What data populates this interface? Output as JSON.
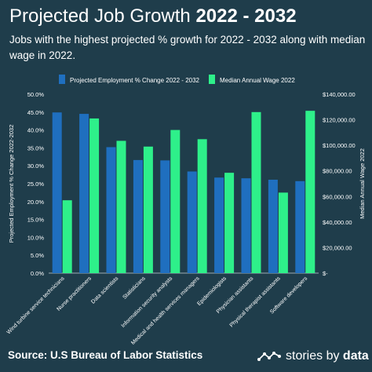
{
  "header": {
    "title_regular": "Projected Job Growth ",
    "title_bold": "2022 - 2032",
    "subtitle": "Jobs with the highest projected % growth for 2022 - 2032 along with median wage in 2022."
  },
  "footer": {
    "source": "Source:  U.S Bureau of Labor Statistics",
    "brand_regular": "stories by ",
    "brand_bold": "data"
  },
  "colors": {
    "background": "#1f3d4b",
    "employment": "#1f6fbf",
    "wage": "#2ef08a",
    "text": "#ffffff",
    "grid": "#3e5c69"
  },
  "chart_data": {
    "type": "bar",
    "categories": [
      "Wind turbine service technicians",
      "Nurse practitioners",
      "Data scientists",
      "Statisticians",
      "Information security analysts",
      "Medical and health services managers",
      "Epidemiologists",
      "Physician assistants",
      "Physical therapist assistants",
      "Software developers"
    ],
    "series": [
      {
        "name": "Projected Employment % Change 2022 - 2032",
        "axis": "left",
        "values": [
          44.9,
          44.5,
          35.2,
          31.6,
          31.5,
          28.4,
          26.7,
          26.5,
          26.1,
          25.7
        ]
      },
      {
        "name": "Median Annual Wage 2022",
        "axis": "right",
        "values": [
          57000,
          121000,
          103500,
          99000,
          112000,
          104800,
          78500,
          126000,
          63000,
          127000
        ]
      }
    ],
    "ylabel": "Projected Employment % Change 2022-2032",
    "y2label": "Median Annual Wage 2022",
    "ylim": [
      0,
      50
    ],
    "y2lim": [
      0,
      140000
    ],
    "yticks": [
      "0.0%",
      "5.0%",
      "10.0%",
      "15.0%",
      "20.0%",
      "25.0%",
      "30.0%",
      "35.0%",
      "40.0%",
      "45.0%",
      "50.0%"
    ],
    "y2ticks": [
      "$-",
      "$20,000.00",
      "$40,000.00",
      "$60,000.00",
      "$80,000.00",
      "$100,000.00",
      "$120,000.00",
      "$140,000.00"
    ],
    "legend_position": "top",
    "grid": false
  }
}
